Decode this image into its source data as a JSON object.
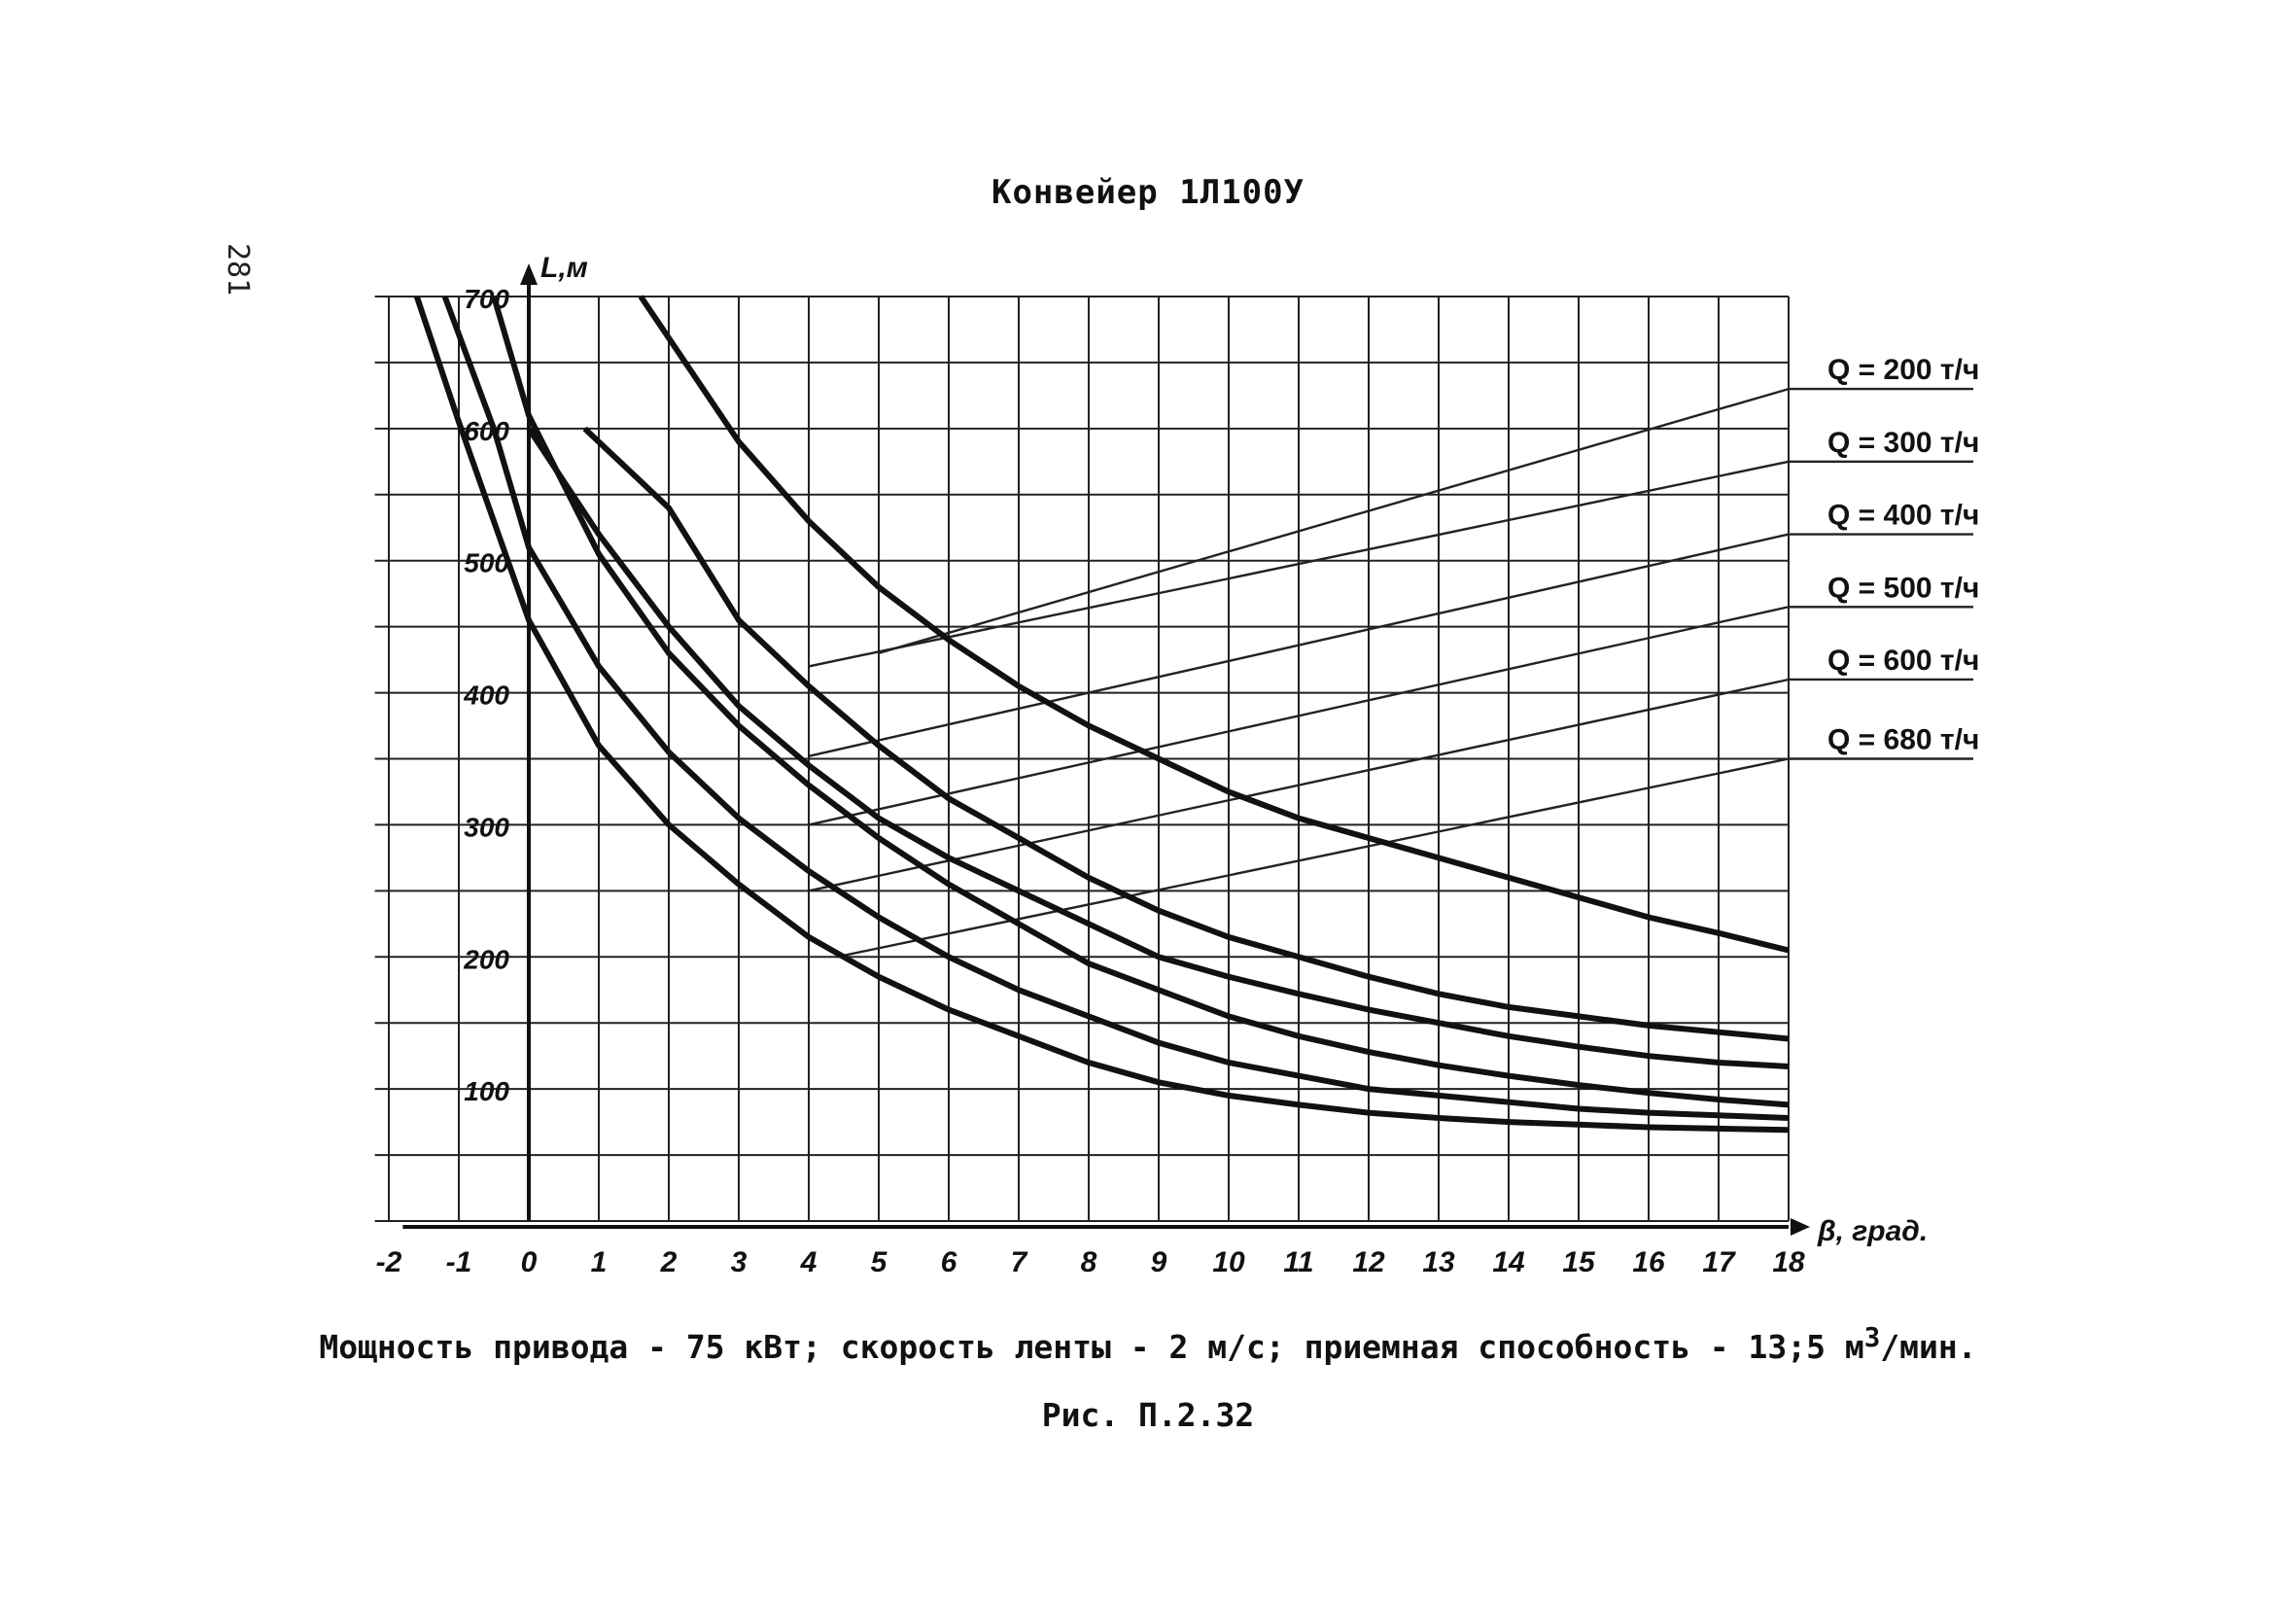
{
  "page_number": "281",
  "title": "Конвейер 1Л100У",
  "caption": {
    "prefix": "Мощность привода - 75 кВт; скорость ленты - 2 м/с; приемная способность - 13;5 м",
    "sup": "3",
    "suffix": "/мин."
  },
  "figure_label": "Рис. П.2.32",
  "chart_data": {
    "type": "line",
    "title": "Конвейер 1Л100У",
    "xlabel": "β, град.",
    "ylabel": "L,м",
    "xlim": [
      -2,
      18
    ],
    "ylim": [
      0,
      700
    ],
    "x_ticks": [
      "-2",
      "-1",
      "0",
      "1",
      "2",
      "3",
      "4",
      "5",
      "6",
      "7",
      "8",
      "9",
      "10",
      "11",
      "12",
      "13",
      "14",
      "15",
      "16",
      "17",
      "18"
    ],
    "y_ticks": [
      "100",
      "200",
      "300",
      "400",
      "500",
      "600",
      "700"
    ],
    "grid": true,
    "series": [
      {
        "name": "Q = 200 т/ч",
        "x": [
          1.6,
          3,
          4,
          5,
          6,
          7,
          8,
          9,
          10,
          11,
          12,
          13,
          14,
          15,
          16,
          17,
          18
        ],
        "values": [
          700,
          590,
          530,
          480,
          440,
          405,
          375,
          350,
          325,
          305,
          290,
          275,
          260,
          245,
          230,
          218,
          205
        ]
      },
      {
        "name": "Q = 300 т/ч",
        "x": [
          0.8,
          2,
          3,
          4,
          5,
          6,
          7,
          8,
          9,
          10,
          11,
          12,
          13,
          14,
          15,
          16,
          17,
          18
        ],
        "values": [
          600,
          540,
          455,
          405,
          360,
          320,
          290,
          260,
          235,
          215,
          200,
          185,
          172,
          162,
          155,
          148,
          143,
          138
        ]
      },
      {
        "name": "Q = 400 т/ч",
        "x": [
          0,
          1,
          2,
          3,
          4,
          5,
          6,
          7,
          8,
          9,
          10,
          11,
          12,
          13,
          14,
          15,
          16,
          17,
          18
        ],
        "values": [
          600,
          520,
          450,
          390,
          345,
          305,
          275,
          250,
          225,
          200,
          185,
          172,
          160,
          150,
          140,
          132,
          125,
          120,
          117
        ]
      },
      {
        "name": "Q = 500 т/ч",
        "x": [
          -0.5,
          0,
          1,
          2,
          3,
          4,
          5,
          6,
          7,
          8,
          9,
          10,
          11,
          12,
          13,
          14,
          15,
          16,
          17,
          18
        ],
        "values": [
          700,
          610,
          505,
          430,
          375,
          330,
          290,
          255,
          225,
          195,
          175,
          155,
          140,
          128,
          118,
          110,
          103,
          97,
          92,
          88
        ]
      },
      {
        "name": "Q = 600 т/ч",
        "x": [
          -1.2,
          -0.5,
          0,
          1,
          2,
          3,
          4,
          5,
          6,
          7,
          8,
          9,
          10,
          11,
          12,
          13,
          14,
          15,
          16,
          17,
          18
        ],
        "values": [
          700,
          600,
          510,
          420,
          355,
          305,
          265,
          230,
          200,
          175,
          155,
          135,
          120,
          110,
          100,
          95,
          90,
          85,
          82,
          80,
          78
        ]
      },
      {
        "name": "Q = 680 т/ч",
        "x": [
          -1.6,
          -1,
          0,
          1,
          2,
          3,
          4,
          5,
          6,
          7,
          8,
          9,
          10,
          11,
          12,
          13,
          14,
          15,
          16,
          17,
          18
        ],
        "values": [
          700,
          605,
          455,
          360,
          300,
          255,
          215,
          185,
          160,
          140,
          120,
          105,
          95,
          88,
          82,
          78,
          75,
          73,
          71,
          70,
          69
        ]
      }
    ],
    "q_lines": [
      {
        "label": "Q = 200 т/ч",
        "start": [
          5,
          430
        ],
        "end": [
          18,
          630
        ]
      },
      {
        "label": "Q = 300 т/ч",
        "start": [
          4,
          420
        ],
        "end": [
          18,
          575
        ]
      },
      {
        "label": "Q = 400 т/ч",
        "start": [
          4,
          352
        ],
        "end": [
          18,
          520
        ]
      },
      {
        "label": "Q = 500 т/ч",
        "start": [
          4,
          300
        ],
        "end": [
          18,
          465
        ]
      },
      {
        "label": "Q = 600 т/ч",
        "start": [
          4,
          250
        ],
        "end": [
          18,
          410
        ]
      },
      {
        "label": "Q = 680 т/ч",
        "start": [
          4.4,
          200
        ],
        "end": [
          18,
          350
        ]
      }
    ]
  }
}
